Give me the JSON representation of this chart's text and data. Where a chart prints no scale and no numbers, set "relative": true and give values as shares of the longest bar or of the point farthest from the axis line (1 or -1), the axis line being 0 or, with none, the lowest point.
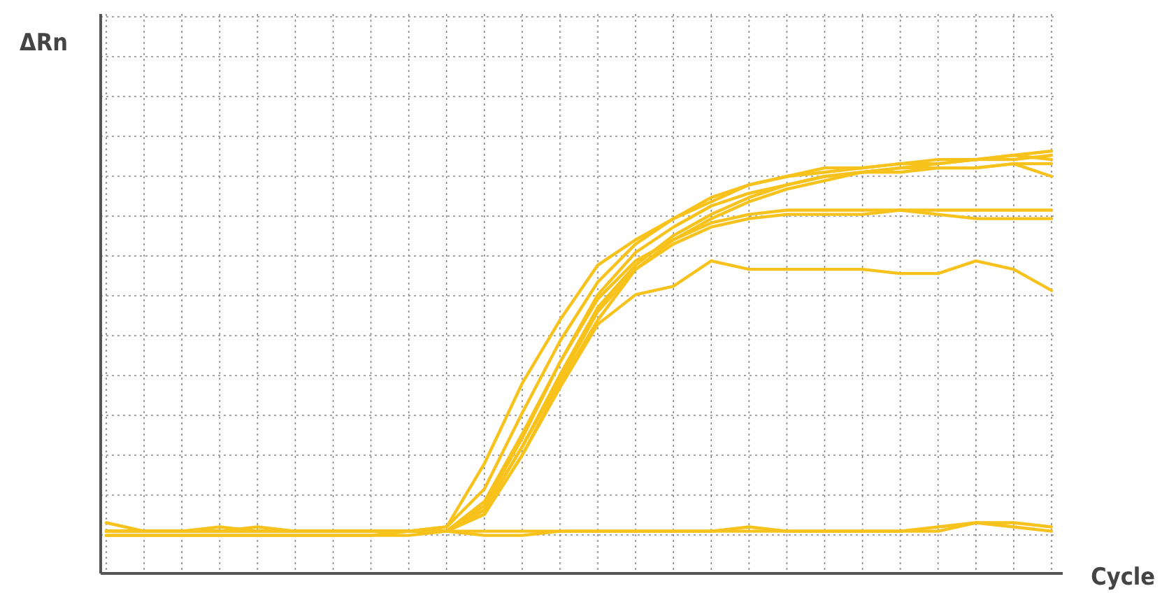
{
  "chart_data": {
    "type": "line",
    "relative": true,
    "xlabel": "Cycle",
    "ylabel": "ΔRn",
    "grid": true,
    "line_style": "solid",
    "marker": "none",
    "categories": [
      null,
      null,
      null,
      null,
      null,
      null,
      null,
      null,
      null,
      null,
      null,
      null,
      null,
      null,
      null,
      null,
      null,
      null,
      null,
      null,
      null,
      null,
      null,
      null,
      null,
      null
    ],
    "series": [
      {
        "color": "#f8c21c",
        "values": [
          0.12,
          0.1,
          0.1,
          0.1,
          0.1,
          0.1,
          0.1,
          0.1,
          0.1,
          0.11,
          0.26,
          0.45,
          0.6,
          0.73,
          0.79,
          0.84,
          0.88,
          0.92,
          0.94,
          0.96,
          0.96,
          0.97,
          0.98,
          0.98,
          0.99,
          0.98
        ]
      },
      {
        "color": "#f8c21c",
        "values": [
          0.09,
          0.09,
          0.09,
          0.09,
          0.09,
          0.09,
          0.09,
          0.09,
          0.1,
          0.11,
          0.2,
          0.38,
          0.55,
          0.69,
          0.78,
          0.84,
          0.89,
          0.92,
          0.94,
          0.95,
          0.96,
          0.97,
          0.97,
          0.98,
          0.99,
          1.0
        ]
      },
      {
        "color": "#f8c21c",
        "values": [
          0.1,
          0.1,
          0.1,
          0.11,
          0.1,
          0.1,
          0.1,
          0.1,
          0.1,
          0.1,
          0.17,
          0.33,
          0.5,
          0.66,
          0.76,
          0.82,
          0.87,
          0.9,
          0.92,
          0.94,
          0.95,
          0.96,
          0.96,
          0.96,
          0.97,
          0.97
        ]
      },
      {
        "color": "#f8c21c",
        "values": [
          0.1,
          0.1,
          0.1,
          0.1,
          0.1,
          0.1,
          0.1,
          0.1,
          0.1,
          0.1,
          0.15,
          0.3,
          0.47,
          0.63,
          0.73,
          0.8,
          0.85,
          0.89,
          0.92,
          0.94,
          0.95,
          0.96,
          0.97,
          0.98,
          0.98,
          0.99
        ]
      },
      {
        "color": "#f8c21c",
        "values": [
          0.1,
          0.1,
          0.1,
          0.1,
          0.1,
          0.1,
          0.1,
          0.1,
          0.1,
          0.1,
          0.14,
          0.28,
          0.45,
          0.6,
          0.72,
          0.79,
          0.84,
          0.88,
          0.91,
          0.93,
          0.95,
          0.95,
          0.96,
          0.96,
          0.97,
          0.94
        ]
      },
      {
        "color": "#f8c21c",
        "values": [
          0.1,
          0.1,
          0.1,
          0.1,
          0.1,
          0.1,
          0.1,
          0.1,
          0.1,
          0.1,
          0.16,
          0.32,
          0.5,
          0.65,
          0.74,
          0.79,
          0.83,
          0.85,
          0.86,
          0.86,
          0.86,
          0.86,
          0.86,
          0.86,
          0.86,
          0.86
        ]
      },
      {
        "color": "#f8c21c",
        "values": [
          0.1,
          0.1,
          0.1,
          0.1,
          0.1,
          0.1,
          0.1,
          0.1,
          0.1,
          0.1,
          0.15,
          0.3,
          0.46,
          0.62,
          0.72,
          0.78,
          0.82,
          0.84,
          0.85,
          0.85,
          0.85,
          0.86,
          0.85,
          0.84,
          0.84,
          0.84
        ]
      },
      {
        "color": "#f8c21c",
        "values": [
          0.1,
          0.1,
          0.1,
          0.1,
          0.1,
          0.1,
          0.1,
          0.1,
          0.1,
          0.1,
          0.14,
          0.28,
          0.44,
          0.59,
          0.66,
          0.68,
          0.74,
          0.72,
          0.72,
          0.72,
          0.72,
          0.71,
          0.71,
          0.74,
          0.72,
          0.67
        ]
      },
      {
        "color": "#f8c21c",
        "values": [
          0.1,
          0.1,
          0.1,
          0.1,
          0.11,
          0.1,
          0.1,
          0.1,
          0.1,
          0.1,
          0.1,
          0.1,
          0.1,
          0.1,
          0.1,
          0.1,
          0.1,
          0.11,
          0.1,
          0.1,
          0.1,
          0.1,
          0.11,
          0.12,
          0.12,
          0.11
        ]
      },
      {
        "color": "#f8c21c",
        "values": [
          0.09,
          0.09,
          0.09,
          0.09,
          0.09,
          0.09,
          0.09,
          0.09,
          0.09,
          0.1,
          0.09,
          0.09,
          0.1,
          0.1,
          0.1,
          0.1,
          0.1,
          0.1,
          0.1,
          0.1,
          0.1,
          0.1,
          0.1,
          0.12,
          0.11,
          0.1
        ]
      }
    ]
  }
}
